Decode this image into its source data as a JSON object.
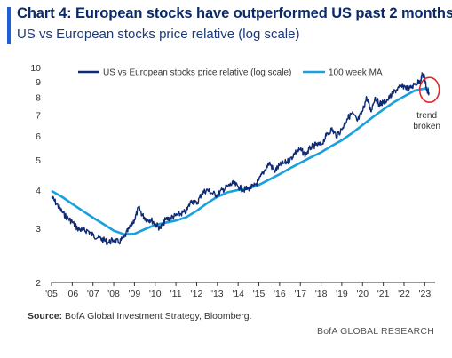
{
  "header": {
    "title": "Chart 4: European stocks have outperformed US past 2 months",
    "subtitle": "US vs European stocks price relative (log scale)"
  },
  "footer": {
    "source_label": "Source:",
    "source_text": "BofA Global Investment Strategy, Bloomberg.",
    "brand": "BofA GLOBAL RESEARCH"
  },
  "colors": {
    "accent": "#1f5fd6",
    "series_main": "#0f2a74",
    "series_ma": "#1aa0dc",
    "annotation_circle": "#e0262b",
    "axis": "#333333"
  },
  "chart_data": {
    "type": "line",
    "title": "Chart 4: European stocks have outperformed US past 2 months",
    "subtitle": "US vs European stocks price relative (log scale)",
    "yscale": "log",
    "ylim": [
      2,
      10
    ],
    "xlim": [
      2005,
      2023.5
    ],
    "y_ticks": [
      2,
      3,
      4,
      5,
      6,
      7,
      8,
      9,
      10
    ],
    "x_ticks": [
      "'05",
      "'06",
      "'07",
      "'08",
      "'09",
      "'10",
      "'11",
      "'12",
      "'13",
      "'14",
      "'15",
      "'16",
      "'17",
      "'18",
      "'19",
      "'20",
      "'21",
      "'22",
      "'23"
    ],
    "grid": false,
    "legend_position": "top",
    "series": [
      {
        "name": "US vs European stocks price relative (log scale)",
        "x": [
          2005,
          2005.25,
          2005.5,
          2005.75,
          2006,
          2006.25,
          2006.5,
          2006.75,
          2007,
          2007.25,
          2007.5,
          2007.75,
          2008,
          2008.25,
          2008.5,
          2008.75,
          2009,
          2009.2,
          2009.4,
          2009.6,
          2009.8,
          2010,
          2010.25,
          2010.5,
          2010.75,
          2011,
          2011.25,
          2011.5,
          2011.75,
          2012,
          2012.25,
          2012.5,
          2012.75,
          2013,
          2013.25,
          2013.5,
          2013.75,
          2014,
          2014.25,
          2014.5,
          2014.75,
          2015,
          2015.25,
          2015.5,
          2015.75,
          2016,
          2016.25,
          2016.5,
          2016.75,
          2017,
          2017.25,
          2017.5,
          2017.75,
          2018,
          2018.25,
          2018.5,
          2018.75,
          2019,
          2019.25,
          2019.5,
          2019.75,
          2020,
          2020.2,
          2020.4,
          2020.6,
          2020.8,
          2021,
          2021.25,
          2021.5,
          2021.75,
          2022,
          2022.25,
          2022.5,
          2022.75,
          2022.9,
          2023,
          2023.1,
          2023.2
        ],
        "y": [
          3.8,
          3.6,
          3.4,
          3.25,
          3.15,
          3.0,
          2.95,
          2.95,
          2.85,
          2.8,
          2.75,
          2.7,
          2.75,
          2.7,
          2.8,
          3.0,
          3.2,
          3.5,
          3.3,
          3.2,
          3.2,
          3.1,
          3.0,
          3.2,
          3.25,
          3.3,
          3.35,
          3.4,
          3.7,
          3.6,
          3.9,
          4.0,
          3.9,
          3.85,
          4.0,
          4.1,
          4.2,
          4.1,
          4.0,
          4.05,
          4.1,
          4.3,
          4.6,
          4.9,
          4.6,
          4.8,
          4.9,
          5.0,
          5.3,
          5.4,
          5.2,
          5.5,
          5.6,
          5.6,
          6.0,
          6.3,
          6.0,
          6.3,
          6.8,
          7.1,
          6.7,
          7.2,
          8.0,
          7.2,
          8.0,
          7.6,
          7.7,
          7.9,
          8.3,
          8.6,
          8.7,
          8.5,
          8.8,
          9.0,
          9.5,
          9.3,
          8.4,
          8.3
        ]
      },
      {
        "name": "100 week MA",
        "x": [
          2005,
          2005.5,
          2006,
          2006.5,
          2007,
          2007.5,
          2008,
          2008.5,
          2009,
          2009.5,
          2010,
          2010.5,
          2011,
          2011.5,
          2012,
          2012.5,
          2013,
          2013.5,
          2014,
          2014.5,
          2015,
          2015.5,
          2016,
          2016.5,
          2017,
          2017.5,
          2018,
          2018.5,
          2019,
          2019.5,
          2020,
          2020.5,
          2021,
          2021.5,
          2022,
          2022.5,
          2023,
          2023.2
        ],
        "y": [
          3.97,
          3.8,
          3.6,
          3.42,
          3.25,
          3.1,
          2.95,
          2.87,
          2.88,
          2.98,
          3.08,
          3.13,
          3.18,
          3.26,
          3.42,
          3.62,
          3.8,
          3.93,
          4.0,
          4.05,
          4.15,
          4.32,
          4.5,
          4.7,
          4.9,
          5.1,
          5.3,
          5.55,
          5.8,
          6.12,
          6.5,
          6.9,
          7.3,
          7.7,
          8.05,
          8.4,
          8.55,
          8.55
        ]
      }
    ],
    "annotations": [
      {
        "text_lines": [
          "trend",
          "broken"
        ],
        "x": 2023.1,
        "y": 8.4
      }
    ]
  }
}
